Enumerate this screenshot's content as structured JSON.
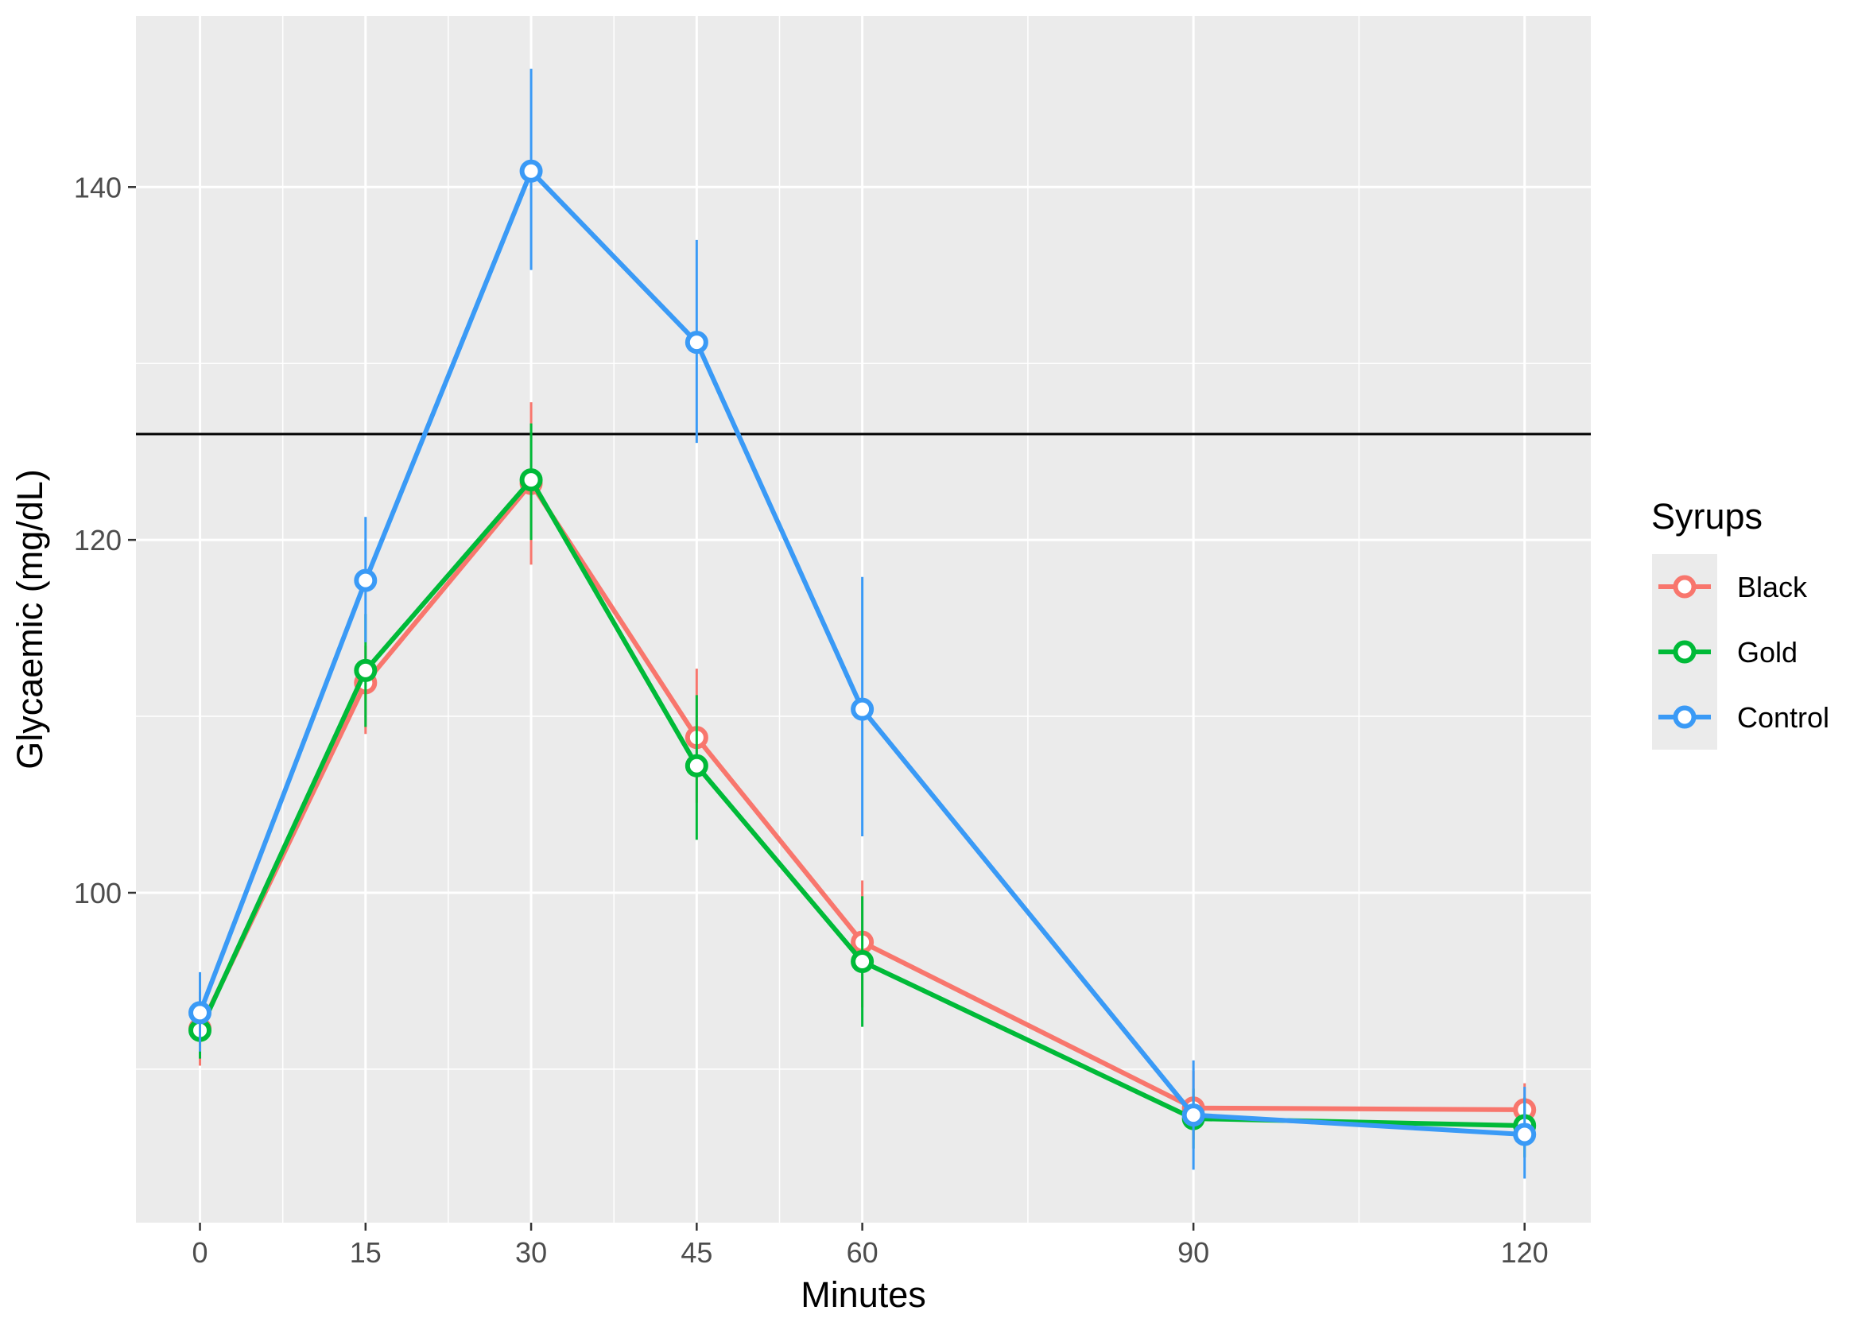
{
  "chart_data": {
    "type": "line",
    "xlabel": "Minutes",
    "ylabel": "Glycaemic (mg/dL)",
    "x_ticks": [
      0,
      15,
      30,
      45,
      60,
      90,
      120
    ],
    "y_ticks": [
      100,
      120,
      140
    ],
    "xlim": [
      -5.8,
      126
    ],
    "ylim": [
      81.3,
      149.7
    ],
    "grid": true,
    "reference_line": {
      "y": 126,
      "color": "#000000"
    },
    "legend": {
      "title": "Syrups",
      "position": "right"
    },
    "series": [
      {
        "name": "Black",
        "color": "#F8766D",
        "x": [
          0,
          15,
          30,
          45,
          60,
          90,
          120
        ],
        "y": [
          92.3,
          111.9,
          123.2,
          108.8,
          97.2,
          87.8,
          87.7
        ],
        "err_low": [
          90.2,
          109.0,
          118.6,
          105.1,
          93.5,
          86.0,
          86.0
        ],
        "err_high": [
          94.4,
          114.0,
          127.8,
          112.7,
          100.7,
          89.9,
          89.2
        ]
      },
      {
        "name": "Gold",
        "color": "#00BA38",
        "x": [
          0,
          15,
          30,
          45,
          60,
          90,
          120
        ],
        "y": [
          92.2,
          112.6,
          123.4,
          107.2,
          96.1,
          87.2,
          86.8
        ],
        "err_low": [
          90.6,
          109.4,
          120.0,
          103.0,
          92.4,
          85.5,
          85.0
        ],
        "err_high": [
          93.8,
          115.8,
          126.6,
          111.2,
          99.8,
          88.9,
          88.4
        ]
      },
      {
        "name": "Control",
        "color": "#3A9AF6",
        "x": [
          0,
          15,
          30,
          45,
          60,
          90,
          120
        ],
        "y": [
          93.2,
          117.7,
          140.9,
          131.2,
          110.4,
          87.4,
          86.3
        ],
        "err_low": [
          91.0,
          114.2,
          135.3,
          125.5,
          103.2,
          84.3,
          83.8
        ],
        "err_high": [
          95.5,
          121.3,
          146.7,
          137.0,
          117.9,
          90.5,
          89.0
        ]
      }
    ]
  }
}
